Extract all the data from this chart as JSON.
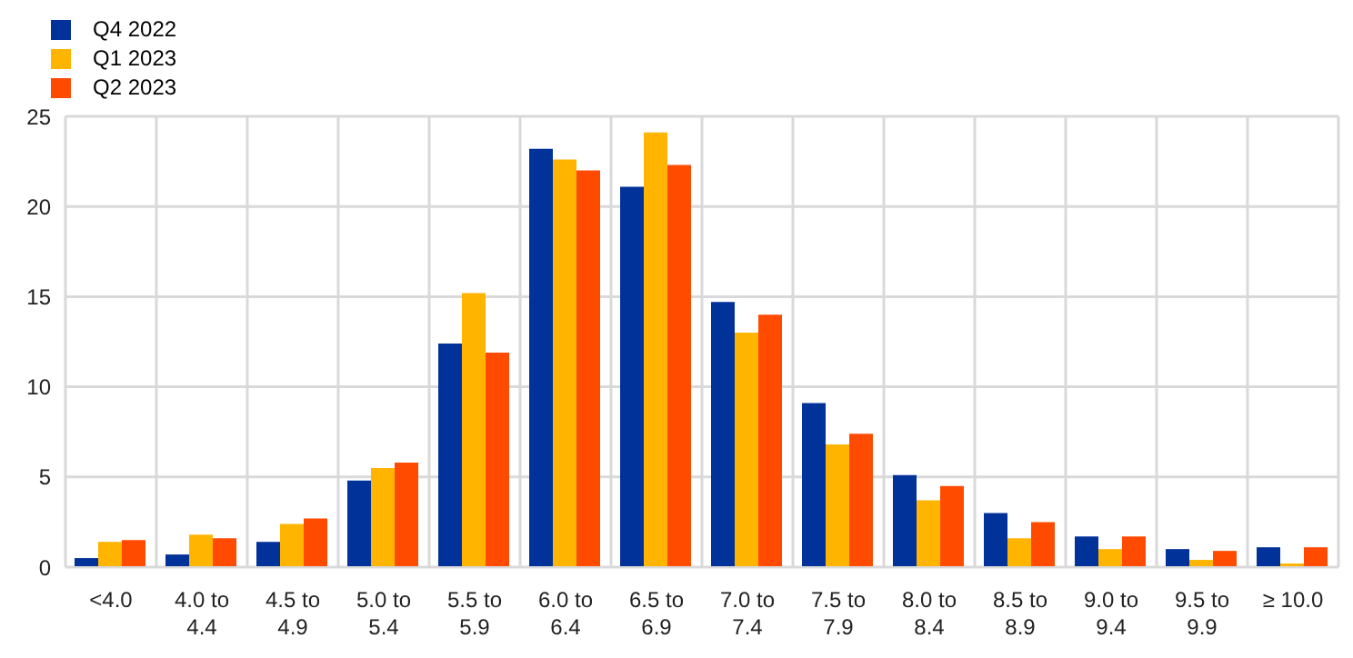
{
  "chart_data": {
    "type": "bar",
    "categories": [
      "<4.0",
      "4.0 to 4.4",
      "4.5 to 4.9",
      "5.0 to 5.4",
      "5.5 to 5.9",
      "6.0 to 6.4",
      "6.5 to 6.9",
      "7.0 to 7.4",
      "7.5 to 7.9",
      "8.0 to 8.4",
      "8.5 to 8.9",
      "9.0 to 9.4",
      "9.5 to 9.9",
      "≥ 10.0"
    ],
    "series": [
      {
        "name": "Q4 2022",
        "color": "#003299",
        "values": [
          0.5,
          0.7,
          1.4,
          4.8,
          12.4,
          23.2,
          21.1,
          14.7,
          9.1,
          5.1,
          3.0,
          1.7,
          1.0,
          1.1
        ]
      },
      {
        "name": "Q1 2023",
        "color": "#ffb400",
        "values": [
          1.4,
          1.8,
          2.4,
          5.5,
          15.2,
          22.6,
          24.1,
          13.0,
          6.8,
          3.7,
          1.6,
          1.0,
          0.4,
          0.2
        ]
      },
      {
        "name": "Q2 2023",
        "color": "#ff4b00",
        "values": [
          1.5,
          1.6,
          2.7,
          5.8,
          11.9,
          22.0,
          22.3,
          14.0,
          7.4,
          4.5,
          2.5,
          1.7,
          0.9,
          1.1
        ]
      }
    ],
    "ylim": [
      0,
      25
    ],
    "yticks": [
      0,
      5,
      10,
      15,
      20,
      25
    ],
    "grid": true,
    "legend": "top left"
  }
}
